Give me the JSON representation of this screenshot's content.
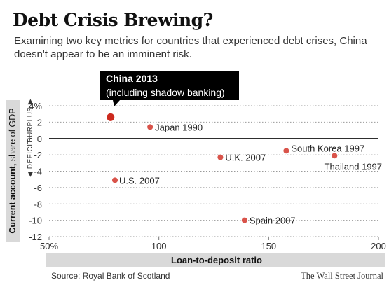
{
  "header": {
    "title": "Debt Crisis Brewing?",
    "subtitle": "Examining two key metrics for countries that experienced debt crises, China doesn't appear to be an imminent risk."
  },
  "footer": {
    "source": "Source: Royal Bank of Scotland",
    "credit": "The Wall Street Journal"
  },
  "chart_data": {
    "type": "scatter",
    "xlabel": "Loan-to-deposit ratio",
    "ylabel": "Current account, share of GDP",
    "ylabel_bold": "Current account,",
    "ylabel_rest": " share of GDP",
    "y_region_labels": {
      "deficit": "◀ DEFICIT",
      "surplus": "SURPLUS ▶"
    },
    "xlim": [
      50,
      200
    ],
    "ylim": [
      -12,
      4
    ],
    "x_ticks": [
      {
        "value": 50,
        "label": "50%"
      },
      {
        "value": 100,
        "label": "100"
      },
      {
        "value": 150,
        "label": "150"
      },
      {
        "value": 200,
        "label": "200"
      }
    ],
    "y_ticks": [
      {
        "value": 4,
        "label": "4%"
      },
      {
        "value": 2,
        "label": "2"
      },
      {
        "value": 0,
        "label": "0"
      },
      {
        "value": -2,
        "label": "-2"
      },
      {
        "value": -4,
        "label": "-4"
      },
      {
        "value": -6,
        "label": "-6"
      },
      {
        "value": -8,
        "label": "-8"
      },
      {
        "value": -10,
        "label": "-10"
      },
      {
        "value": -12,
        "label": "-12"
      }
    ],
    "grid": "horizontal dotted",
    "colors": {
      "point": "#d9534a",
      "highlight": "#cc2a1e",
      "callout_bg": "#000000",
      "axis_band": "#d9d9d9"
    },
    "points": [
      {
        "label": "China 2013",
        "x": 78,
        "y": 2.6,
        "highlight": true
      },
      {
        "label": "Japan 1990",
        "x": 96,
        "y": 1.4
      },
      {
        "label": "U.K. 2007",
        "x": 128,
        "y": -2.3
      },
      {
        "label": "South Korea 1997",
        "x": 158,
        "y": -1.5
      },
      {
        "label": "Thailand 1997",
        "x": 180,
        "y": -2.1
      },
      {
        "label": "U.S. 2007",
        "x": 80,
        "y": -5.1
      },
      {
        "label": "Spain 2007",
        "x": 139,
        "y": -10.0
      }
    ],
    "callout": {
      "line1": "China 2013",
      "line2": "(including shadow banking)"
    }
  }
}
